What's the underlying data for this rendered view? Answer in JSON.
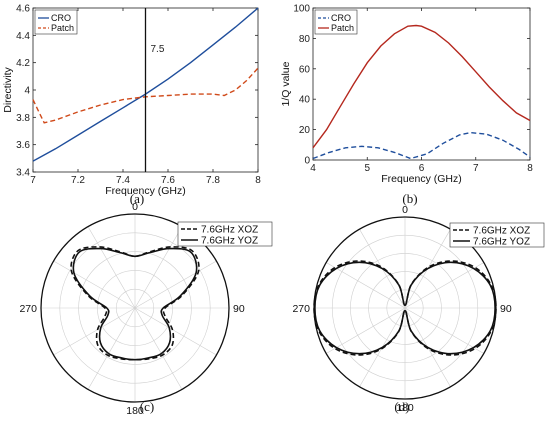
{
  "chart_data": [
    {
      "id": "a",
      "type": "line",
      "caption": "(a)",
      "xlabel": "Frequency (GHz)",
      "ylabel": "Directivity",
      "xlim": [
        7,
        8
      ],
      "ylim": [
        3.4,
        4.6
      ],
      "xticks": [
        "7",
        "7.2",
        "7.4",
        "7.6",
        "7.8",
        "8"
      ],
      "yticks": [
        "3.4",
        "3.6",
        "3.8",
        "4",
        "4.2",
        "4.4",
        "4.6"
      ],
      "annotation": {
        "text": "7.5",
        "x": 7.5
      },
      "legend_position": "top-left",
      "series": [
        {
          "name": "CRO",
          "color": "#1f4e9c",
          "dash": "solid",
          "x": [
            7.0,
            7.1,
            7.2,
            7.3,
            7.4,
            7.5,
            7.6,
            7.7,
            7.8,
            7.9,
            8.0
          ],
          "y": [
            3.48,
            3.57,
            3.67,
            3.77,
            3.87,
            3.97,
            4.08,
            4.2,
            4.33,
            4.46,
            4.6
          ]
        },
        {
          "name": "Patch",
          "color": "#d04a1a",
          "dash": "dashed",
          "x": [
            7.0,
            7.02,
            7.05,
            7.1,
            7.2,
            7.3,
            7.4,
            7.5,
            7.6,
            7.7,
            7.8,
            7.85,
            7.9,
            7.95,
            8.0
          ],
          "y": [
            3.93,
            3.86,
            3.76,
            3.78,
            3.84,
            3.89,
            3.93,
            3.95,
            3.96,
            3.97,
            3.97,
            3.96,
            4.0,
            4.07,
            4.16
          ]
        }
      ]
    },
    {
      "id": "b",
      "type": "line",
      "caption": "(b)",
      "xlabel": "Frequency (GHz)",
      "ylabel": "1/Q value",
      "xlim": [
        4,
        8
      ],
      "ylim": [
        0,
        100
      ],
      "xticks": [
        "4",
        "5",
        "6",
        "7",
        "8"
      ],
      "yticks": [
        "0",
        "20",
        "40",
        "60",
        "80",
        "100"
      ],
      "legend_position": "top-left",
      "series": [
        {
          "name": "CRO",
          "color": "#1f4e9c",
          "dash": "dashed",
          "x": [
            4.0,
            4.3,
            4.6,
            4.9,
            5.2,
            5.5,
            5.8,
            6.1,
            6.4,
            6.7,
            6.9,
            7.2,
            7.5,
            7.8,
            8.0
          ],
          "y": [
            1,
            5,
            8,
            9,
            8,
            5,
            1,
            4,
            11,
            16.5,
            18,
            17,
            13,
            7,
            2
          ]
        },
        {
          "name": "Patch",
          "color": "#b5281e",
          "dash": "solid",
          "x": [
            4.0,
            4.25,
            4.5,
            4.75,
            5.0,
            5.25,
            5.5,
            5.75,
            5.9,
            6.0,
            6.25,
            6.5,
            6.75,
            7.0,
            7.25,
            7.5,
            7.75,
            8.0
          ],
          "y": [
            8,
            20,
            35,
            50,
            64,
            75,
            83,
            88,
            88.5,
            88,
            84,
            77,
            68,
            58,
            48,
            39,
            31,
            26
          ]
        }
      ]
    },
    {
      "id": "c",
      "type": "polar",
      "caption": "(c)",
      "angle_labels": [
        "0",
        "90",
        "180",
        "270"
      ],
      "legend_position": "top-right",
      "theta_deg": [
        0,
        15,
        30,
        45,
        60,
        75,
        90,
        105,
        120,
        135,
        150,
        165,
        180,
        195,
        210,
        225,
        240,
        255,
        270,
        285,
        300,
        315,
        330,
        345
      ],
      "series": [
        {
          "name": "7.6GHz XOZ",
          "color": "#111111",
          "dash": "dashed",
          "r": [
            0.55,
            0.62,
            0.75,
            0.86,
            0.78,
            0.52,
            0.32,
            0.33,
            0.46,
            0.56,
            0.58,
            0.56,
            0.55,
            0.56,
            0.58,
            0.56,
            0.46,
            0.33,
            0.32,
            0.52,
            0.78,
            0.86,
            0.75,
            0.62
          ]
        },
        {
          "name": "7.6GHz YOZ",
          "color": "#111111",
          "dash": "solid",
          "r": [
            0.55,
            0.61,
            0.73,
            0.84,
            0.75,
            0.5,
            0.3,
            0.3,
            0.42,
            0.52,
            0.56,
            0.55,
            0.55,
            0.55,
            0.56,
            0.52,
            0.42,
            0.3,
            0.3,
            0.5,
            0.75,
            0.84,
            0.73,
            0.61
          ]
        }
      ]
    },
    {
      "id": "d",
      "type": "polar",
      "caption": "(d)",
      "angle_labels": [
        "0",
        "90",
        "180",
        "270"
      ],
      "legend_position": "top-right",
      "theta_deg": [
        0,
        15,
        30,
        45,
        60,
        75,
        90,
        105,
        120,
        135,
        150,
        165,
        180,
        195,
        210,
        225,
        240,
        255,
        270,
        285,
        300,
        315,
        330,
        345
      ],
      "series": [
        {
          "name": "7.6GHz XOZ",
          "color": "#111111",
          "dash": "dashed",
          "r": [
            0.03,
            0.27,
            0.52,
            0.73,
            0.89,
            0.98,
            1.0,
            0.98,
            0.89,
            0.73,
            0.52,
            0.27,
            0.03,
            0.27,
            0.52,
            0.73,
            0.89,
            0.98,
            1.0,
            0.98,
            0.89,
            0.73,
            0.52,
            0.27
          ]
        },
        {
          "name": "7.6GHz YOZ",
          "color": "#111111",
          "dash": "solid",
          "r": [
            0.03,
            0.26,
            0.5,
            0.71,
            0.87,
            0.97,
            0.99,
            0.97,
            0.87,
            0.71,
            0.5,
            0.26,
            0.03,
            0.26,
            0.5,
            0.71,
            0.87,
            0.97,
            0.99,
            0.97,
            0.87,
            0.71,
            0.5,
            0.26
          ]
        }
      ]
    }
  ]
}
